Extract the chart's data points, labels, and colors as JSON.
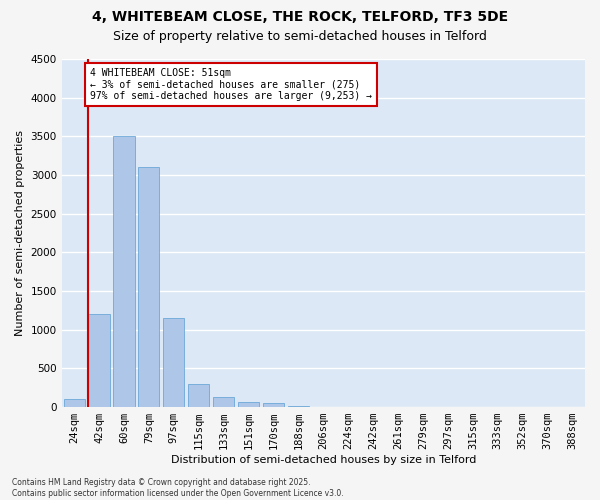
{
  "title1": "4, WHITEBEAM CLOSE, THE ROCK, TELFORD, TF3 5DE",
  "title2": "Size of property relative to semi-detached houses in Telford",
  "xlabel": "Distribution of semi-detached houses by size in Telford",
  "ylabel": "Number of semi-detached properties",
  "bins": [
    "24sqm",
    "42sqm",
    "60sqm",
    "79sqm",
    "97sqm",
    "115sqm",
    "133sqm",
    "151sqm",
    "170sqm",
    "188sqm",
    "206sqm",
    "224sqm",
    "242sqm",
    "261sqm",
    "279sqm",
    "297sqm",
    "315sqm",
    "333sqm",
    "352sqm",
    "370sqm",
    "388sqm"
  ],
  "values": [
    100,
    1200,
    3500,
    3100,
    1150,
    300,
    130,
    70,
    50,
    10,
    5,
    2,
    1,
    0,
    0,
    0,
    0,
    0,
    0,
    0,
    0
  ],
  "bar_color": "#aec6e8",
  "bar_edge_color": "#5a9fd4",
  "vline_x_index": 1,
  "vline_color": "#cc0000",
  "annotation_box_color": "#cc0000",
  "annotation_text": "4 WHITEBEAM CLOSE: 51sqm\n← 3% of semi-detached houses are smaller (275)\n97% of semi-detached houses are larger (9,253) →",
  "ylim": [
    0,
    4500
  ],
  "yticks": [
    0,
    500,
    1000,
    1500,
    2000,
    2500,
    3000,
    3500,
    4000,
    4500
  ],
  "background_color": "#dce8f5",
  "grid_color": "#ffffff",
  "fig_background": "#f5f5f5",
  "footnote": "Contains HM Land Registry data © Crown copyright and database right 2025.\nContains public sector information licensed under the Open Government Licence v3.0.",
  "title1_fontsize": 10,
  "title2_fontsize": 9,
  "xlabel_fontsize": 8,
  "ylabel_fontsize": 8,
  "tick_fontsize": 7.5,
  "annot_fontsize": 7
}
